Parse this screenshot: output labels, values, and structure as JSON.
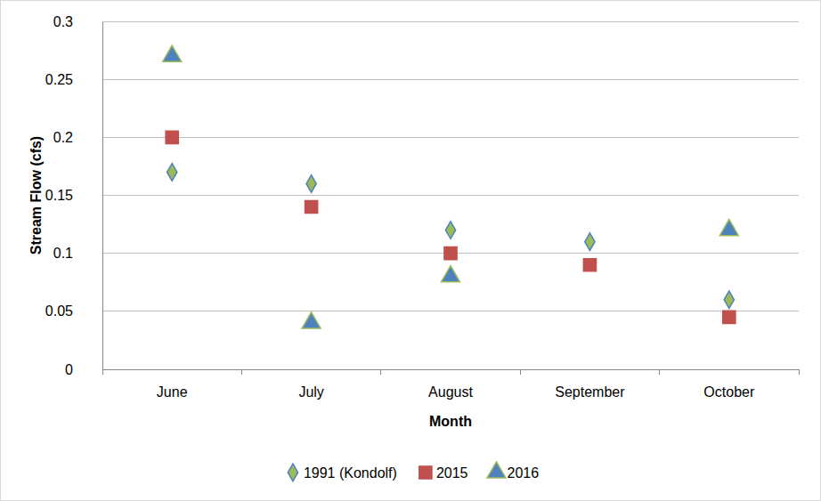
{
  "chart_data": {
    "type": "scatter",
    "x_label": "Month",
    "y_label": "Stream Flow (cfs)",
    "categories": [
      "June",
      "July",
      "August",
      "September",
      "October"
    ],
    "series": [
      {
        "name": "1991 (Kondolf)",
        "color": "#9bbb59",
        "marker": "diamond",
        "values": [
          0.17,
          0.16,
          0.12,
          0.11,
          0.06
        ]
      },
      {
        "name": "2015",
        "color": "#c0504d",
        "marker": "square",
        "values": [
          0.2,
          0.14,
          0.1,
          0.09,
          0.045
        ]
      },
      {
        "name": "2016",
        "color": "#4f81bd",
        "marker": "triangle",
        "values": [
          0.27,
          0.04,
          0.08,
          null,
          0.12
        ]
      }
    ],
    "ylim": [
      0,
      0.3
    ],
    "yticks": [
      0,
      0.05,
      0.1,
      0.15,
      0.2,
      0.25,
      0.3
    ],
    "grid": true,
    "legend": "bottom"
  }
}
